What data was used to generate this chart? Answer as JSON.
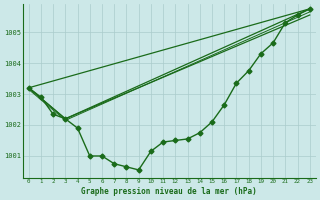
{
  "background_color": "#cce8e8",
  "grid_color": "#aacccc",
  "line_color": "#1a6b1a",
  "xlabel": "Graphe pression niveau de la mer (hPa)",
  "xlim": [
    -0.5,
    23.5
  ],
  "ylim": [
    1000.3,
    1005.9
  ],
  "yticks": [
    1001,
    1002,
    1003,
    1004,
    1005
  ],
  "xticks": [
    0,
    1,
    2,
    3,
    4,
    5,
    6,
    7,
    8,
    9,
    10,
    11,
    12,
    13,
    14,
    15,
    16,
    17,
    18,
    19,
    20,
    21,
    22,
    23
  ],
  "main_x": [
    0,
    1,
    2,
    3,
    4,
    5,
    6,
    7,
    8,
    9,
    10,
    11,
    12,
    13,
    14,
    15,
    16,
    17,
    18,
    19,
    20,
    21,
    22,
    23
  ],
  "main_y": [
    1003.2,
    1002.9,
    1002.35,
    1002.2,
    1001.9,
    1001.0,
    1001.0,
    1000.75,
    1000.65,
    1000.55,
    1001.15,
    1001.45,
    1001.5,
    1001.55,
    1001.75,
    1002.1,
    1002.65,
    1003.35,
    1003.75,
    1004.3,
    1004.65,
    1005.3,
    1005.55,
    1005.75
  ],
  "tri_line1_x": [
    0,
    23
  ],
  "tri_line1_y": [
    1003.2,
    1005.75
  ],
  "tri_line2_x": [
    0,
    3,
    23
  ],
  "tri_line2_y": [
    1003.2,
    1002.2,
    1005.75
  ],
  "tri_line3_x": [
    0,
    3,
    23
  ],
  "tri_line3_y": [
    1003.2,
    1002.2,
    1005.55
  ],
  "tri_line4_x": [
    0,
    3,
    23
  ],
  "tri_line4_y": [
    1003.15,
    1002.15,
    1005.65
  ]
}
